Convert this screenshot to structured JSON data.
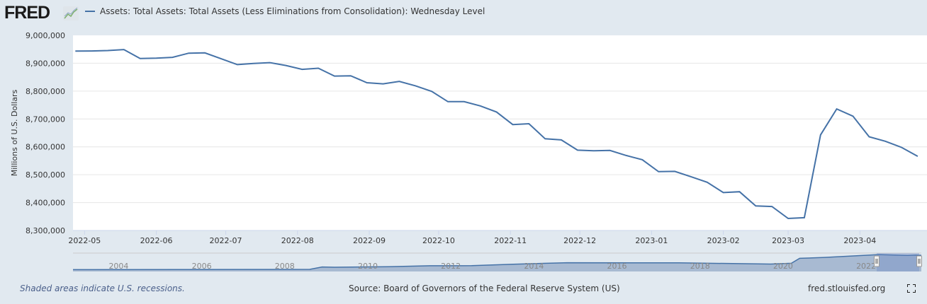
{
  "header": {
    "logo_text": "FRED",
    "legend_label": "Assets: Total Assets: Total Assets (Less Eliminations from Consolidation): Wednesday Level"
  },
  "colors": {
    "series": "#4572a7",
    "background": "#e1e9f0",
    "plot": "#ffffff",
    "navigator_fill": "#8fa8c8"
  },
  "chart_data": {
    "type": "line",
    "title": "",
    "xlabel": "",
    "ylabel": "Millions of U.S. Dollars",
    "ylim": [
      8300000,
      9000000
    ],
    "xlim": [
      "2022-04-26",
      "2023-04-30"
    ],
    "grid": true,
    "legend": "top-left",
    "yticks": [
      "8,300,000",
      "8,400,000",
      "8,500,000",
      "8,600,000",
      "8,700,000",
      "8,800,000",
      "8,900,000",
      "9,000,000"
    ],
    "ytick_values": [
      8300000,
      8400000,
      8500000,
      8600000,
      8700000,
      8800000,
      8900000,
      9000000
    ],
    "xticks": [
      "2022-05",
      "2022-06",
      "2022-07",
      "2022-08",
      "2022-09",
      "2022-10",
      "2022-11",
      "2022-12",
      "2023-01",
      "2023-02",
      "2023-03",
      "2023-04"
    ],
    "series": [
      {
        "name": "Assets: Total Assets: Total Assets (Less Eliminations from Consolidation): Wednesday Level",
        "start": "2022-04-27",
        "frequency": "weekly",
        "values": [
          8943500,
          8944000,
          8945500,
          8949000,
          8917000,
          8918000,
          8921000,
          8936000,
          8937000,
          8916000,
          8895000,
          8899000,
          8902000,
          8892000,
          8878000,
          8882000,
          8854000,
          8855000,
          8830000,
          8826000,
          8835000,
          8819000,
          8799000,
          8762000,
          8762000,
          8747000,
          8725000,
          8680000,
          8683000,
          8629000,
          8625000,
          8588000,
          8586000,
          8587000,
          8569000,
          8554000,
          8511000,
          8512000,
          8493000,
          8473000,
          8436000,
          8439000,
          8388000,
          8386000,
          8343000,
          8346000,
          8643000,
          8736000,
          8710000,
          8636000,
          8620000,
          8598000,
          8566000
        ]
      }
    ],
    "navigator": {
      "years": [
        "2004",
        "2006",
        "2008",
        "2010",
        "2012",
        "2014",
        "2016",
        "2018",
        "2020",
        "2022"
      ],
      "xlim": [
        2002.9,
        2023.33
      ],
      "points": [
        [
          2002.9,
          720000
        ],
        [
          2008.6,
          900000
        ],
        [
          2008.9,
          2200000
        ],
        [
          2009.2,
          2050000
        ],
        [
          2010.5,
          2300000
        ],
        [
          2011.5,
          2850000
        ],
        [
          2012.5,
          2900000
        ],
        [
          2013.5,
          3700000
        ],
        [
          2014.8,
          4500000
        ],
        [
          2017.5,
          4450000
        ],
        [
          2019.7,
          3800000
        ],
        [
          2020.2,
          4200000
        ],
        [
          2020.4,
          6900000
        ],
        [
          2021.0,
          7400000
        ],
        [
          2022.3,
          8950000
        ],
        [
          2023.0,
          8500000
        ],
        [
          2023.2,
          8700000
        ],
        [
          2023.33,
          8560000
        ]
      ]
    }
  },
  "footer": {
    "recession_note": "Shaded areas indicate U.S. recessions.",
    "source": "Source: Board of Governors of the Federal Reserve System (US)",
    "site": "fred.stlouisfed.org",
    "fullscreen_icon": "fullscreen-icon"
  }
}
